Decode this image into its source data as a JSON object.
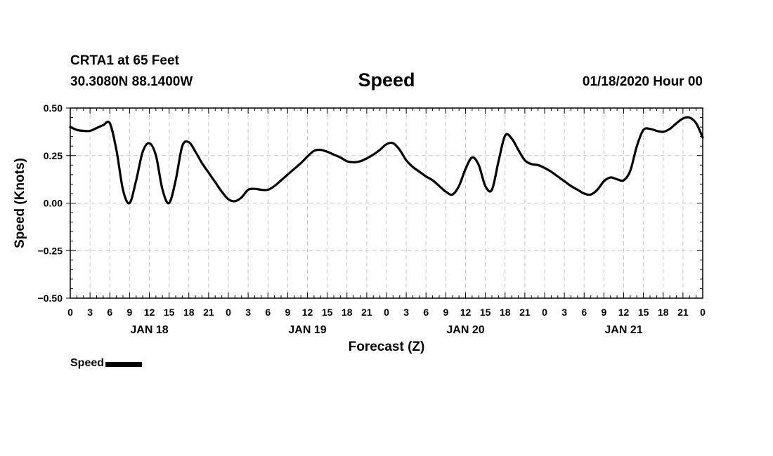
{
  "header": {
    "station": "CRTA1 at 65 Feet",
    "coords": "30.3080N 88.1400W",
    "title": "Speed",
    "date_hour": "01/18/2020 Hour 00"
  },
  "legend": {
    "label": "Speed",
    "color": "#000000"
  },
  "chart_data": {
    "type": "line",
    "title": "Speed",
    "xlabel": "Forecast (Z)",
    "ylabel": "Speed (Knots)",
    "ylim": [
      -0.5,
      0.5
    ],
    "yticks": [
      "0.50",
      "0.25",
      "0.00",
      "−0.25",
      "−0.50"
    ],
    "ytick_values": [
      0.5,
      0.25,
      0,
      -0.25,
      -0.5
    ],
    "xlim": [
      0,
      96
    ],
    "x_hour_labels": [
      "0",
      "3",
      "6",
      "9",
      "12",
      "15",
      "18",
      "21",
      "0",
      "3",
      "6",
      "9",
      "12",
      "15",
      "18",
      "21",
      "0",
      "3",
      "6",
      "9",
      "12",
      "15",
      "18",
      "21",
      "0",
      "3",
      "6",
      "9",
      "12",
      "15",
      "18",
      "21",
      "0"
    ],
    "day_labels": [
      "JAN 18",
      "JAN 19",
      "JAN 20",
      "JAN 21"
    ],
    "day_label_hours": [
      12,
      36,
      60,
      84
    ],
    "grid": true,
    "legend_position": "bottom-left",
    "series": [
      {
        "name": "Speed",
        "color": "#000000",
        "x": [
          0,
          1,
          2,
          3,
          4,
          5,
          6,
          7,
          8,
          9,
          10,
          11,
          12,
          13,
          14,
          15,
          16,
          17,
          18,
          19,
          20,
          21,
          22,
          23,
          24,
          25,
          26,
          27,
          28,
          29,
          30,
          31,
          32,
          33,
          34,
          35,
          36,
          37,
          38,
          39,
          40,
          41,
          42,
          43,
          44,
          45,
          46,
          47,
          48,
          49,
          50,
          51,
          52,
          53,
          54,
          55,
          56,
          57,
          58,
          59,
          60,
          61,
          62,
          63,
          64,
          65,
          66,
          67,
          68,
          69,
          70,
          71,
          72,
          73,
          74,
          75,
          76,
          77,
          78,
          79,
          80,
          81,
          82,
          83,
          84,
          85,
          86,
          87,
          88,
          89,
          90,
          91,
          92,
          93,
          94,
          95,
          96
        ],
        "values": [
          0.4,
          0.385,
          0.38,
          0.38,
          0.395,
          0.41,
          0.42,
          0.28,
          0.07,
          0.0,
          0.12,
          0.27,
          0.315,
          0.25,
          0.07,
          0.0,
          0.12,
          0.3,
          0.32,
          0.27,
          0.21,
          0.16,
          0.11,
          0.06,
          0.02,
          0.01,
          0.03,
          0.07,
          0.075,
          0.07,
          0.07,
          0.09,
          0.12,
          0.15,
          0.18,
          0.21,
          0.245,
          0.275,
          0.28,
          0.27,
          0.255,
          0.24,
          0.22,
          0.215,
          0.22,
          0.235,
          0.255,
          0.28,
          0.31,
          0.315,
          0.28,
          0.225,
          0.19,
          0.165,
          0.14,
          0.12,
          0.09,
          0.06,
          0.045,
          0.09,
          0.18,
          0.24,
          0.2,
          0.09,
          0.07,
          0.22,
          0.355,
          0.34,
          0.28,
          0.225,
          0.205,
          0.2,
          0.185,
          0.165,
          0.14,
          0.115,
          0.09,
          0.07,
          0.05,
          0.045,
          0.07,
          0.115,
          0.135,
          0.125,
          0.12,
          0.17,
          0.3,
          0.385,
          0.39,
          0.38,
          0.375,
          0.39,
          0.42,
          0.445,
          0.45,
          0.42,
          0.345
        ]
      }
    ]
  }
}
